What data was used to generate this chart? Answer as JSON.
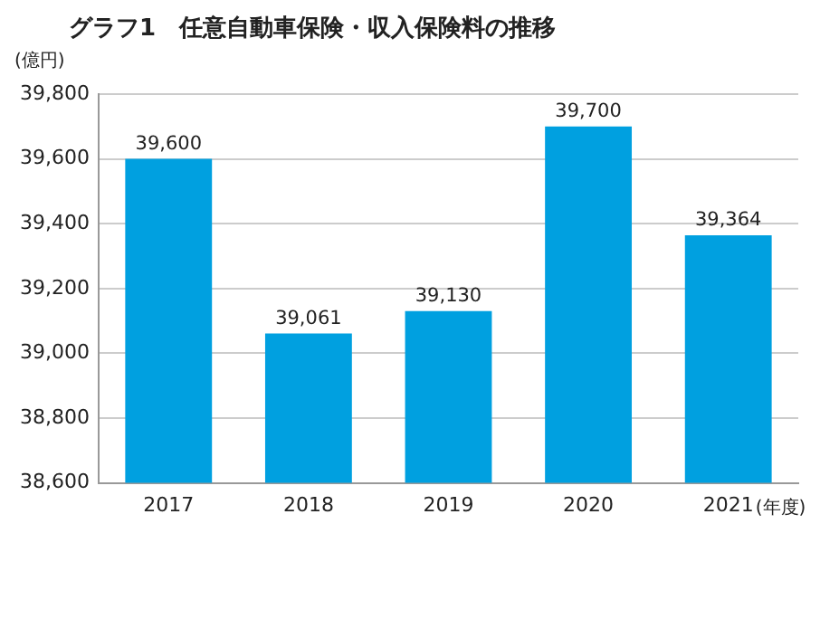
{
  "chart_data": {
    "type": "bar",
    "title": "グラフ1　任意自動車保険・収入保険料の推移",
    "ylabel": "(億円)",
    "xlabel": "(年度)",
    "categories": [
      "2017",
      "2018",
      "2019",
      "2020",
      "2021"
    ],
    "values": [
      39600,
      39061,
      39130,
      39700,
      39364
    ],
    "value_labels": [
      "39,600",
      "39,061",
      "39,130",
      "39,700",
      "39,364"
    ],
    "color": "#00a0e0",
    "ylim": [
      38600,
      39800
    ],
    "yticks": [
      {
        "value": 38600,
        "label": "38,600"
      },
      {
        "value": 38800,
        "label": "38,800"
      },
      {
        "value": 39000,
        "label": "39,000"
      },
      {
        "value": 39200,
        "label": "39,200"
      },
      {
        "value": 39400,
        "label": "39,400"
      },
      {
        "value": 39600,
        "label": "39,600"
      },
      {
        "value": 39800,
        "label": "39,800"
      }
    ],
    "grid": "y",
    "legend": false
  }
}
